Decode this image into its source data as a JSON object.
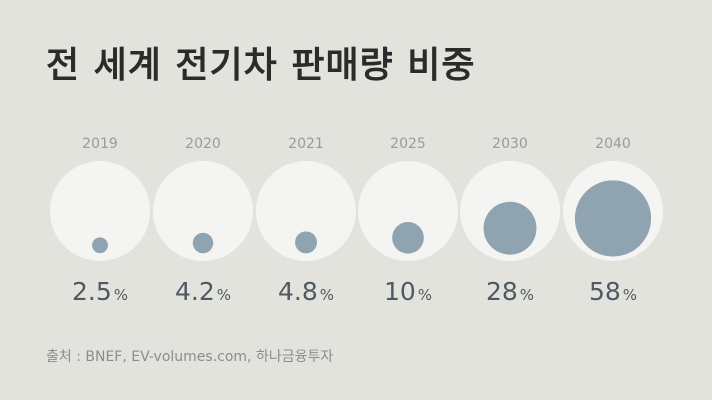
{
  "title": "전 세계 전기차 판매량 비중",
  "source": "출처 : BNEF, EV-volumes.com, 하나금융투자",
  "chart_data": {
    "type": "bubble",
    "categories": [
      "2019",
      "2020",
      "2021",
      "2025",
      "2030",
      "2040"
    ],
    "values": [
      2.5,
      4.2,
      4.8,
      10,
      28,
      58
    ],
    "value_labels": [
      "2.5",
      "4.2",
      "4.8",
      "10",
      "28",
      "58"
    ],
    "unit": "%",
    "max_value": 100,
    "colors": {
      "background": "#e3e3de",
      "full_circle": "#f4f4f2",
      "value_circle": "#8fa3b1",
      "year_label": "#9a9a9a",
      "value_label": "#4e5a63"
    }
  }
}
